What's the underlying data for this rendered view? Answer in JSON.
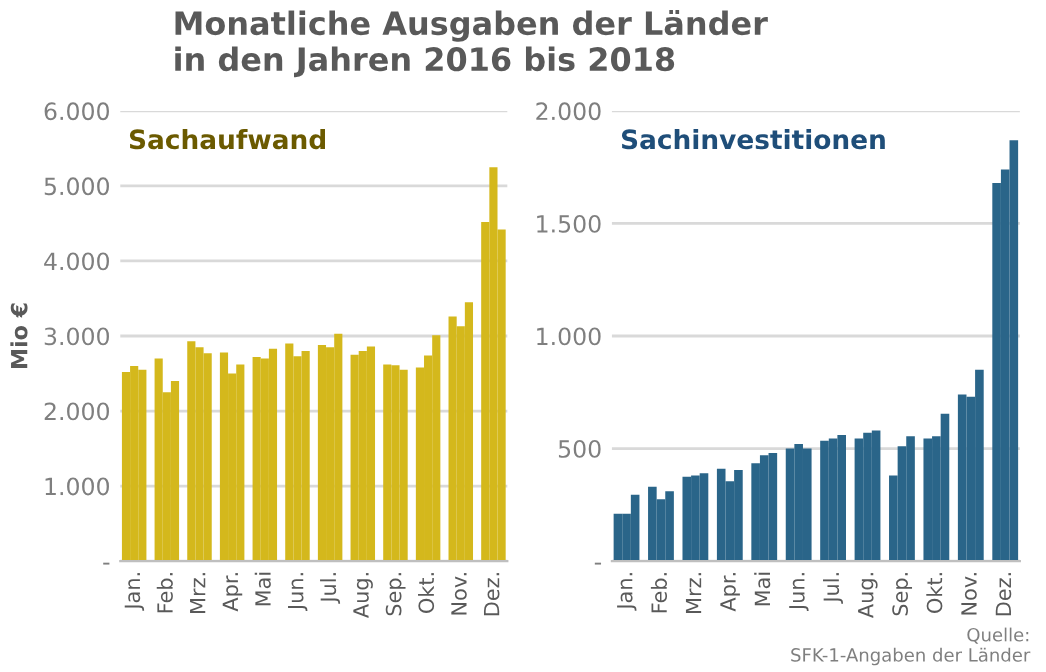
{
  "chart_data": [
    {
      "type": "bar",
      "title": "Monatliche Ausgaben der Länder\nin den Jahren 2016 bis 2018",
      "subtitle": "Sachaufwand",
      "ylabel": "Mio €",
      "categories": [
        null,
        "Jan.",
        null,
        null,
        null,
        "Feb.",
        null,
        null,
        null,
        "Mrz.",
        null,
        null,
        null,
        "Apr.",
        null,
        null,
        null,
        "Mai",
        null,
        null,
        null,
        "Jun.",
        null,
        null,
        null,
        "Jul.",
        null,
        null,
        null,
        "Aug.",
        null,
        null,
        null,
        "Sep.",
        null,
        null,
        null,
        "Okt.",
        null,
        null,
        null,
        "Nov.",
        null,
        null,
        null,
        "Dez.",
        null
      ],
      "values": [
        2520,
        2600,
        2550,
        null,
        2700,
        2250,
        2400,
        null,
        2930,
        2850,
        2770,
        null,
        2780,
        2500,
        2620,
        null,
        2720,
        2700,
        2830,
        null,
        2900,
        2730,
        2800,
        null,
        2880,
        2850,
        3030,
        null,
        2750,
        2800,
        2860,
        null,
        2620,
        2610,
        2550,
        null,
        2580,
        2740,
        3010,
        null,
        3260,
        3130,
        3450,
        null,
        4520,
        5250,
        4420
      ],
      "color": "#d4b81c",
      "ylim": [
        0,
        6000
      ],
      "yticks": [
        {
          "value": 0,
          "label": "-"
        },
        {
          "value": 1000,
          "label": "1.000"
        },
        {
          "value": 2000,
          "label": "2.000"
        },
        {
          "value": 3000,
          "label": "3.000"
        },
        {
          "value": 4000,
          "label": "4.000"
        },
        {
          "value": 5000,
          "label": "5.000"
        },
        {
          "value": 6000,
          "label": "6.000"
        }
      ],
      "grid": "y",
      "legend": false
    },
    {
      "type": "bar",
      "subtitle": "Sachinvestitionen",
      "categories": [
        null,
        "Jan.",
        null,
        null,
        null,
        "Feb.",
        null,
        null,
        null,
        "Mrz.",
        null,
        null,
        null,
        "Apr.",
        null,
        null,
        null,
        "Mai",
        null,
        null,
        null,
        "Jun.",
        null,
        null,
        null,
        "Jul.",
        null,
        null,
        null,
        "Aug.",
        null,
        null,
        null,
        "Sep.",
        null,
        null,
        null,
        "Okt.",
        null,
        null,
        null,
        "Nov.",
        null,
        null,
        null,
        "Dez.",
        null
      ],
      "values": [
        210,
        210,
        295,
        null,
        330,
        275,
        310,
        null,
        375,
        380,
        390,
        null,
        410,
        355,
        405,
        null,
        435,
        470,
        480,
        null,
        500,
        520,
        500,
        null,
        535,
        545,
        560,
        null,
        545,
        570,
        580,
        null,
        380,
        510,
        555,
        null,
        545,
        555,
        655,
        null,
        740,
        730,
        850,
        null,
        1680,
        1740,
        1870
      ],
      "color": "#2a6589",
      "ylim": [
        0,
        2000
      ],
      "yticks": [
        {
          "value": 0,
          "label": "-"
        },
        {
          "value": 500,
          "label": "500"
        },
        {
          "value": 1000,
          "label": "1.000"
        },
        {
          "value": 1500,
          "label": "1.500"
        },
        {
          "value": 2000,
          "label": "2.000"
        }
      ],
      "grid": "y",
      "legend": false,
      "annotations": [
        "Quelle:\nSFK-1-Angaben der Länder"
      ]
    }
  ]
}
